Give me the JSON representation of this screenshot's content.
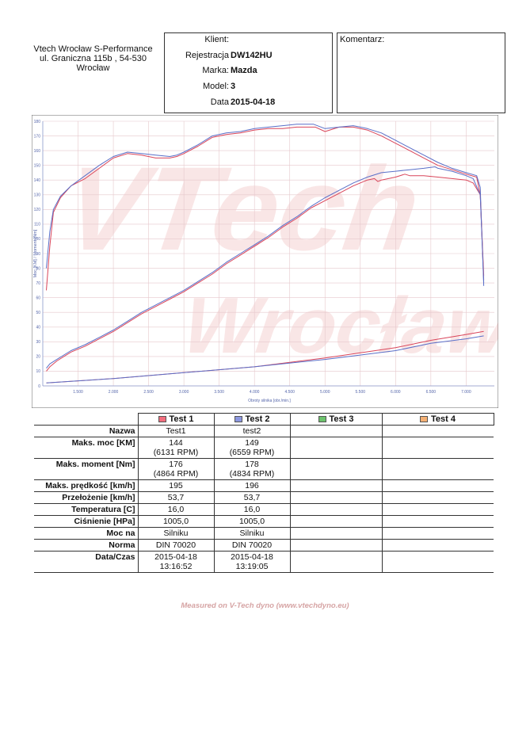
{
  "header": {
    "company": [
      "Vtech Wrocław S-Performance",
      "ul. Graniczna 115b , 54-530",
      "Wrocław"
    ],
    "client_title": "Klient:",
    "fields": [
      {
        "label": "Rejestracja",
        "value": "DW142HU"
      },
      {
        "label": "Marka:",
        "value": "Mazda"
      },
      {
        "label": "Model:",
        "value": "3"
      },
      {
        "label": "Data",
        "value": "2015-04-18"
      }
    ],
    "comment_label": "Komentarz:"
  },
  "chart_data": {
    "type": "line",
    "xlabel": "Obroty silnika [obr./min.]",
    "ylabel": "Moc [KM] / Moment [Nm]",
    "xlim": [
      1000,
      7400
    ],
    "ylim": [
      0,
      180
    ],
    "x_ticks": [
      1500,
      2000,
      2500,
      3000,
      3500,
      4000,
      4500,
      5000,
      5500,
      6000,
      6500,
      7000
    ],
    "x_tick_labels": [
      "1.500",
      "2.000",
      "2.500",
      "3.000",
      "3.500",
      "4.000",
      "4.500",
      "5.000",
      "5.500",
      "6.000",
      "6.500",
      "7.000"
    ],
    "y_ticks": [
      0,
      10,
      20,
      30,
      40,
      50,
      60,
      70,
      80,
      90,
      100,
      110,
      120,
      130,
      140,
      150,
      160,
      170,
      180
    ],
    "grid": true,
    "series": [
      {
        "name": "Test1",
        "kind": "torque",
        "color": "#d9455a",
        "x": [
          1050,
          1100,
          1150,
          1250,
          1400,
          1600,
          1800,
          2000,
          2200,
          2400,
          2600,
          2800,
          2900,
          3000,
          3200,
          3400,
          3600,
          3800,
          4000,
          4200,
          4400,
          4600,
          4800,
          4864,
          5000,
          5200,
          5400,
          5500,
          5600,
          5800,
          6000,
          6200,
          6400,
          6600,
          6800,
          7000,
          7150,
          7200,
          7250
        ],
        "y": [
          65,
          95,
          118,
          128,
          136,
          141,
          148,
          155,
          158,
          157,
          155,
          155,
          156,
          158,
          163,
          169,
          171,
          172,
          174,
          175,
          175,
          176,
          176,
          176,
          173,
          176,
          176,
          175,
          174,
          170,
          165,
          160,
          155,
          150,
          147,
          144,
          142,
          130,
          72
        ]
      },
      {
        "name": "test2",
        "kind": "torque",
        "color": "#5a6fc8",
        "x": [
          1050,
          1100,
          1150,
          1250,
          1400,
          1600,
          1800,
          2000,
          2200,
          2400,
          2600,
          2800,
          2900,
          3000,
          3200,
          3400,
          3600,
          3800,
          4000,
          4200,
          4400,
          4600,
          4834,
          5000,
          5200,
          5400,
          5500,
          5600,
          5800,
          6000,
          6200,
          6400,
          6600,
          6800,
          7000,
          7150,
          7200,
          7250
        ],
        "y": [
          80,
          105,
          120,
          129,
          136,
          143,
          150,
          156,
          159,
          158,
          157,
          156,
          157,
          159,
          164,
          170,
          172,
          173,
          175,
          176,
          177,
          178,
          178,
          175,
          176,
          177,
          176,
          175,
          172,
          167,
          162,
          157,
          152,
          148,
          145,
          143,
          135,
          68
        ]
      },
      {
        "name": "Test1",
        "kind": "power",
        "color": "#d9455a",
        "x": [
          1050,
          1100,
          1200,
          1400,
          1600,
          1800,
          2000,
          2200,
          2400,
          2600,
          2800,
          3000,
          3200,
          3400,
          3600,
          3800,
          4000,
          4200,
          4400,
          4600,
          4800,
          5000,
          5200,
          5400,
          5600,
          5700,
          5750,
          5800,
          6000,
          6131,
          6200,
          6400,
          6600,
          6800,
          7000,
          7100,
          7200,
          7250
        ],
        "y": [
          10,
          13,
          17,
          23,
          27,
          32,
          37,
          43,
          49,
          54,
          59,
          64,
          70,
          76,
          83,
          89,
          95,
          101,
          108,
          114,
          121,
          126,
          131,
          136,
          140,
          141,
          139,
          140,
          142,
          144,
          143,
          143,
          142,
          141,
          140,
          138,
          130,
          75
        ]
      },
      {
        "name": "test2",
        "kind": "power",
        "color": "#5a6fc8",
        "x": [
          1050,
          1100,
          1200,
          1400,
          1600,
          1800,
          2000,
          2200,
          2400,
          2600,
          2800,
          3000,
          3200,
          3400,
          3600,
          3800,
          4000,
          4200,
          4400,
          4600,
          4800,
          5000,
          5200,
          5400,
          5600,
          5800,
          6000,
          6200,
          6400,
          6559,
          6600,
          6800,
          7000,
          7100,
          7200,
          7250
        ],
        "y": [
          12,
          15,
          18,
          24,
          28,
          33,
          38,
          44,
          50,
          55,
          60,
          65,
          71,
          77,
          84,
          90,
          96,
          102,
          109,
          115,
          122,
          128,
          133,
          138,
          142,
          145,
          146,
          147,
          148,
          149,
          148,
          146,
          143,
          141,
          130,
          70
        ]
      },
      {
        "name": "Test1",
        "kind": "loss",
        "color": "#d9455a",
        "x": [
          1050,
          2000,
          3000,
          4000,
          5000,
          6000,
          6500,
          7000,
          7250
        ],
        "y": [
          2,
          5,
          9,
          13,
          19,
          26,
          31,
          35,
          37
        ]
      },
      {
        "name": "test2",
        "kind": "loss",
        "color": "#5a6fc8",
        "x": [
          1050,
          2000,
          3000,
          4000,
          5000,
          6000,
          6500,
          7000,
          7250
        ],
        "y": [
          2,
          5,
          9,
          13,
          18,
          24,
          29,
          32,
          34
        ]
      }
    ]
  },
  "table": {
    "tests": [
      {
        "label": "Test 1",
        "color": "#f26d7d"
      },
      {
        "label": "Test 2",
        "color": "#8c97e0"
      },
      {
        "label": "Test 3",
        "color": "#6cc26c"
      },
      {
        "label": "Test 4",
        "color": "#f4b074"
      }
    ],
    "rows": [
      {
        "label": "Nazwa",
        "v1": "Test1",
        "v2": "test2"
      },
      {
        "label": "Maks. moc [KM]",
        "v1": "144\n(6131 RPM)",
        "v2": "149\n(6559 RPM)"
      },
      {
        "label": "Maks. moment [Nm]",
        "v1": "176\n(4864 RPM)",
        "v2": "178\n(4834 RPM)"
      },
      {
        "label": "Maks. prędkość [km/h]",
        "v1": "195",
        "v2": "196"
      },
      {
        "label": "Przełożenie [km/h]",
        "v1": "53,7",
        "v2": "53,7"
      },
      {
        "label": "Temperatura [C]",
        "v1": "16,0",
        "v2": "16,0"
      },
      {
        "label": "Ciśnienie [HPa]",
        "v1": "1005,0",
        "v2": "1005,0"
      },
      {
        "label": "Moc na",
        "v1": "Silniku",
        "v2": "Silniku"
      },
      {
        "label": "Norma",
        "v1": "DIN 70020",
        "v2": "DIN 70020"
      },
      {
        "label": "Data/Czas",
        "v1": "2015-04-18\n13:16:52",
        "v2": "2015-04-18\n13:19:05"
      }
    ]
  },
  "footer": "Measured on V-Tech dyno (www.vtechdyno.eu)"
}
